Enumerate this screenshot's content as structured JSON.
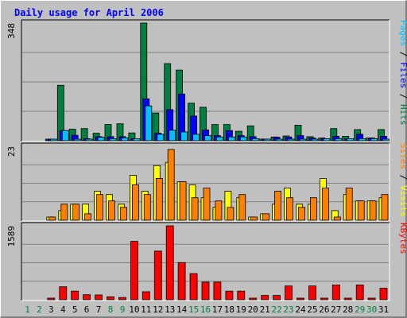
{
  "chart_data": {
    "type": "bar",
    "title": "Daily usage for April 2006",
    "x": [
      "1",
      "2",
      "3",
      "4",
      "5",
      "6",
      "7",
      "8",
      "9",
      "10",
      "11",
      "12",
      "13",
      "14",
      "15",
      "16",
      "17",
      "18",
      "19",
      "20",
      "21",
      "22",
      "23",
      "24",
      "25",
      "26",
      "27",
      "28",
      "29",
      "30",
      "31"
    ],
    "weekend_days": [
      "1",
      "2",
      "8",
      "9",
      "15",
      "16",
      "22",
      "23",
      "29",
      "30"
    ],
    "panels": [
      {
        "id": "hits",
        "ymax": 348,
        "ymax_label": "348",
        "legend": [
          {
            "text": "Pages",
            "color": "#00c0ff"
          },
          {
            "text": " / ",
            "color": "#000000"
          },
          {
            "text": "Files",
            "color": "#0000ff"
          },
          {
            "text": " / ",
            "color": "#000000"
          },
          {
            "text": "Hits",
            "color": "#008040"
          }
        ],
        "series": [
          {
            "name": "Hits",
            "color": "#008040",
            "values": [
              0,
              0,
              3,
              164,
              34,
              36,
              22,
              48,
              50,
              23,
              348,
              82,
              228,
              209,
              111,
              99,
              48,
              48,
              28,
              44,
              5,
              11,
              14,
              46,
              12,
              8,
              36,
              13,
              33,
              8,
              33
            ]
          },
          {
            "name": "Files",
            "color": "#0000ff",
            "values": [
              0,
              0,
              3,
              30,
              16,
              6,
              12,
              12,
              12,
              6,
              124,
              22,
              92,
              138,
              73,
              32,
              15,
              30,
              15,
              12,
              3,
              10,
              11,
              15,
              8,
              6,
              13,
              6,
              19,
              8,
              13
            ]
          },
          {
            "name": "Pages",
            "color": "#00c0ff",
            "values": [
              0,
              0,
              3,
              30,
              4,
              3,
              10,
              6,
              9,
              6,
              103,
              19,
              31,
              26,
              19,
              15,
              11,
              11,
              11,
              6,
              3,
              3,
              4,
              4,
              4,
              6,
              6,
              6,
              6,
              6,
              4
            ]
          }
        ]
      },
      {
        "id": "visits",
        "ymax": 23,
        "ymax_label": "23",
        "legend": [
          {
            "text": "Sites",
            "color": "#ff8000"
          },
          {
            "text": " / ",
            "color": "#000000"
          },
          {
            "text": "Visits",
            "color": "#ffff00"
          }
        ],
        "series": [
          {
            "name": "Visits",
            "color": "#ffff00",
            "values": [
              0,
              0,
              1,
              3,
              5,
              5,
              9,
              8,
              5,
              14,
              9,
              17,
              18,
              12,
              11,
              7,
              4,
              9,
              7,
              1,
              2,
              5,
              10,
              5,
              5,
              13,
              3,
              8,
              6,
              6,
              7
            ]
          },
          {
            "name": "Sites",
            "color": "#ff8000",
            "values": [
              0,
              0,
              1,
              5,
              5,
              2,
              8,
              6,
              4,
              11,
              8,
              13,
              22,
              12,
              7,
              10,
              6,
              4,
              8,
              1,
              2,
              9,
              7,
              4,
              7,
              10,
              1,
              10,
              6,
              6,
              8
            ]
          }
        ]
      },
      {
        "id": "kbytes",
        "ymax": 1589,
        "ymax_label": "1589",
        "legend": [
          {
            "text": "KBytes",
            "color": "#ff0000"
          }
        ],
        "series": [
          {
            "name": "KBytes",
            "color": "#ff0000",
            "values": [
              0,
              0,
              3,
              278,
              185,
              108,
              102,
              64,
              48,
              1254,
              172,
              1045,
              1589,
              800,
              562,
              380,
              380,
              185,
              185,
              26,
              92,
              92,
              296,
              26,
              296,
              26,
              318,
              33,
              318,
              26,
              246
            ]
          }
        ]
      }
    ],
    "colors": {
      "title": "#0000ff",
      "background": "#c0c0c0",
      "gridline": "#808080",
      "weekday_label": "#000000",
      "weekend_label": "#008040"
    },
    "grid": true
  }
}
